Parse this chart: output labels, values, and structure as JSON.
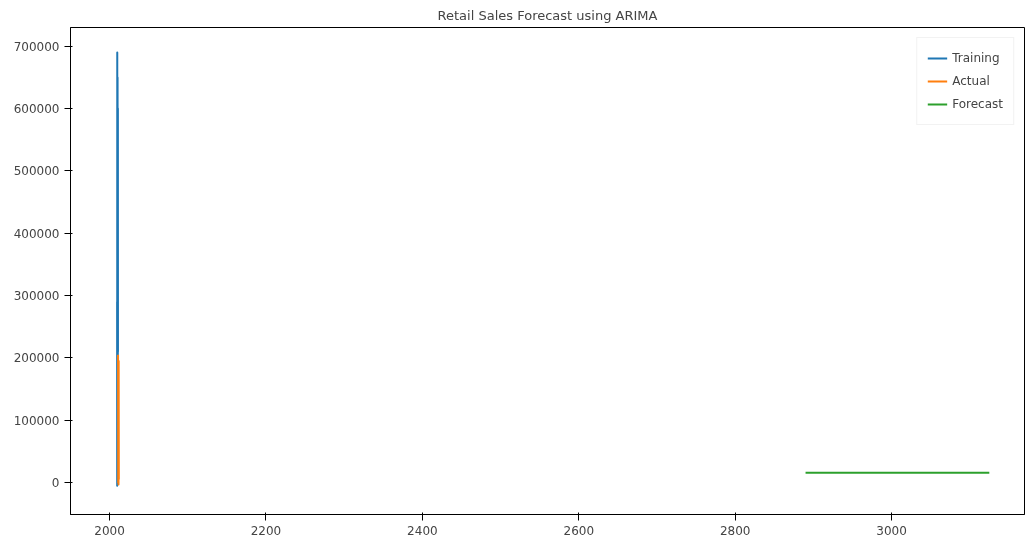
{
  "chart_data": {
    "type": "line",
    "title": "Retail Sales Forecast using ARIMA",
    "xlim": [
      1950,
      3170
    ],
    "xticks": [
      2000,
      2200,
      2400,
      2600,
      2800,
      3000
    ],
    "ylim": [
      -51000,
      730000
    ],
    "yticks": [
      0,
      100000,
      200000,
      300000,
      400000,
      500000,
      600000,
      700000
    ],
    "grid": false,
    "legend": "top right",
    "series": [
      {
        "name": "Training",
        "color": "#1f77b4",
        "x": [
          2009.6,
          2009.7,
          2009.8,
          2009.9,
          2010.0,
          2010.1,
          2010.2,
          2010.3,
          2010.4,
          2010.5,
          2010.6,
          2010.7
        ],
        "values": [
          290000,
          -5000,
          690000,
          20000,
          400000,
          -3000,
          650000,
          10000,
          300000,
          0,
          600000,
          210000
        ]
      },
      {
        "name": "Actual",
        "color": "#ff7f0e",
        "x": [
          2010.8,
          2011.0,
          2011.2,
          2011.4,
          2011.6,
          2011.8
        ],
        "values": [
          205000,
          0,
          180000,
          -3000,
          195000,
          5000
        ]
      },
      {
        "name": "Forecast",
        "color": "#2ca02c",
        "x": [
          2890,
          3125
        ],
        "values": [
          16000,
          16000
        ]
      }
    ]
  }
}
